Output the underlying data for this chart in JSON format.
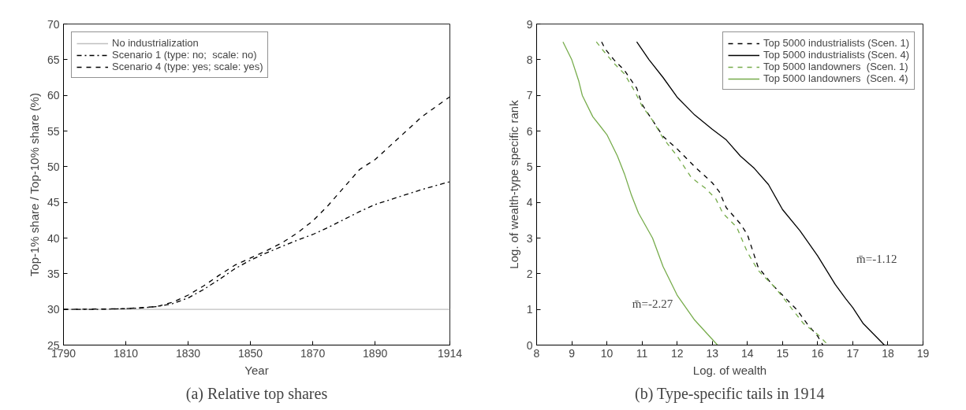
{
  "chart_data": [
    {
      "type": "line",
      "title": "(a) Relative top shares",
      "xlabel": "Year",
      "ylabel": "Top-1% share / Top-10% share (%)",
      "xlim": [
        1790,
        1914
      ],
      "xticks": [
        1790,
        1810,
        1830,
        1850,
        1870,
        1890,
        1914
      ],
      "ylim": [
        25,
        70
      ],
      "yticks": [
        25,
        30,
        35,
        40,
        45,
        50,
        55,
        60,
        65,
        70
      ],
      "grid": false,
      "legend": "top left",
      "series": [
        {
          "name": "No industrialization",
          "color": "#c0c0c0",
          "line_style": "solid",
          "x": [
            1790,
            1914
          ],
          "values": [
            30,
            30
          ]
        },
        {
          "name": "Scenario 1 (type: no;  scale: no)",
          "color": "#000000",
          "line_style": "dashdot",
          "x": [
            1790,
            1800,
            1810,
            1815,
            1820,
            1825,
            1830,
            1835,
            1840,
            1845,
            1850,
            1855,
            1860,
            1865,
            1870,
            1875,
            1880,
            1885,
            1890,
            1895,
            1900,
            1905,
            1914
          ],
          "values": [
            30,
            30,
            30.1,
            30.2,
            30.4,
            30.8,
            31.6,
            32.8,
            34.2,
            35.7,
            36.9,
            37.9,
            38.8,
            39.7,
            40.5,
            41.5,
            42.6,
            43.7,
            44.7,
            45.4,
            46.1,
            46.8,
            47.9
          ]
        },
        {
          "name": "Scenario 4 (type: yes; scale: yes)",
          "color": "#000000",
          "line_style": "dashed",
          "x": [
            1790,
            1810,
            1820,
            1825,
            1830,
            1835,
            1840,
            1845,
            1850,
            1855,
            1860,
            1865,
            1870,
            1875,
            1880,
            1885,
            1890,
            1895,
            1900,
            1905,
            1914
          ],
          "values": [
            30,
            30.1,
            30.4,
            31,
            32,
            33.3,
            34.8,
            36.2,
            37.2,
            38.2,
            39.3,
            40.7,
            42.4,
            44.6,
            47.1,
            49.6,
            51,
            53,
            55,
            57,
            59.8
          ]
        }
      ]
    },
    {
      "type": "line",
      "title": "(b) Type-specific tails in 1914",
      "xlabel": "Log. of wealth",
      "ylabel": "Log. of wealth-type specific rank",
      "xlim": [
        8,
        19
      ],
      "xticks": [
        8,
        9,
        10,
        11,
        12,
        13,
        14,
        15,
        16,
        17,
        18,
        19
      ],
      "ylim": [
        0,
        9
      ],
      "yticks": [
        0,
        1,
        2,
        3,
        4,
        5,
        6,
        7,
        8,
        9
      ],
      "grid": false,
      "legend": "top right",
      "annotations": [
        "m̄=-2.27",
        "m̄=-1.12"
      ],
      "series": [
        {
          "name": "Top 5000 industrialists (Scen. 1)",
          "color": "#000000",
          "line_style": "dashed",
          "x": [
            9.85,
            9.95,
            10.2,
            10.5,
            10.85,
            11.0,
            11.3,
            11.6,
            12.0,
            12.5,
            13.0,
            13.2,
            13.4,
            13.8,
            14.0,
            14.3,
            14.7,
            15.0,
            15.4,
            15.7,
            16.0,
            16.15
          ],
          "values": [
            8.5,
            8.3,
            8.0,
            7.7,
            7.2,
            6.75,
            6.3,
            5.85,
            5.5,
            5.0,
            4.55,
            4.3,
            3.85,
            3.4,
            3.1,
            2.2,
            1.7,
            1.4,
            1.0,
            0.6,
            0.25,
            0
          ]
        },
        {
          "name": "Top 5000 industrialists (Scen. 4)",
          "color": "#000000",
          "line_style": "solid",
          "x": [
            10.85,
            11.2,
            11.6,
            12.0,
            12.5,
            13.0,
            13.4,
            13.8,
            14.2,
            14.6,
            15.0,
            15.5,
            16.0,
            16.5,
            16.8,
            17.0,
            17.3,
            17.9
          ],
          "values": [
            8.5,
            8.0,
            7.5,
            6.95,
            6.45,
            6.05,
            5.75,
            5.3,
            4.95,
            4.5,
            3.8,
            3.2,
            2.5,
            1.7,
            1.3,
            1.05,
            0.6,
            0
          ]
        },
        {
          "name": "Top 5000 landowners  (Scen. 1)",
          "color": "#77ac4c",
          "line_style": "dashed",
          "x": [
            9.7,
            9.9,
            10.2,
            10.5,
            10.8,
            11.0,
            11.3,
            11.6,
            12.0,
            12.4,
            12.8,
            13.1,
            13.3,
            13.7,
            14.0,
            14.3,
            14.8,
            15.2,
            15.6,
            16.0,
            16.3
          ],
          "values": [
            8.5,
            8.25,
            7.9,
            7.6,
            7.1,
            6.7,
            6.3,
            5.8,
            5.3,
            4.7,
            4.4,
            4.1,
            3.7,
            3.3,
            2.6,
            2.1,
            1.6,
            1.1,
            0.6,
            0.3,
            0
          ]
        },
        {
          "name": "Top 5000 landowners  (Scen. 4)",
          "color": "#77ac4c",
          "line_style": "solid",
          "x": [
            8.75,
            9.0,
            9.2,
            9.3,
            9.6,
            10.0,
            10.3,
            10.5,
            10.7,
            10.9,
            11.3,
            11.6,
            12.0,
            12.5,
            13.15
          ],
          "values": [
            8.5,
            8.0,
            7.4,
            7.0,
            6.4,
            5.9,
            5.3,
            4.8,
            4.2,
            3.7,
            3.0,
            2.2,
            1.4,
            0.7,
            0
          ]
        }
      ]
    }
  ]
}
